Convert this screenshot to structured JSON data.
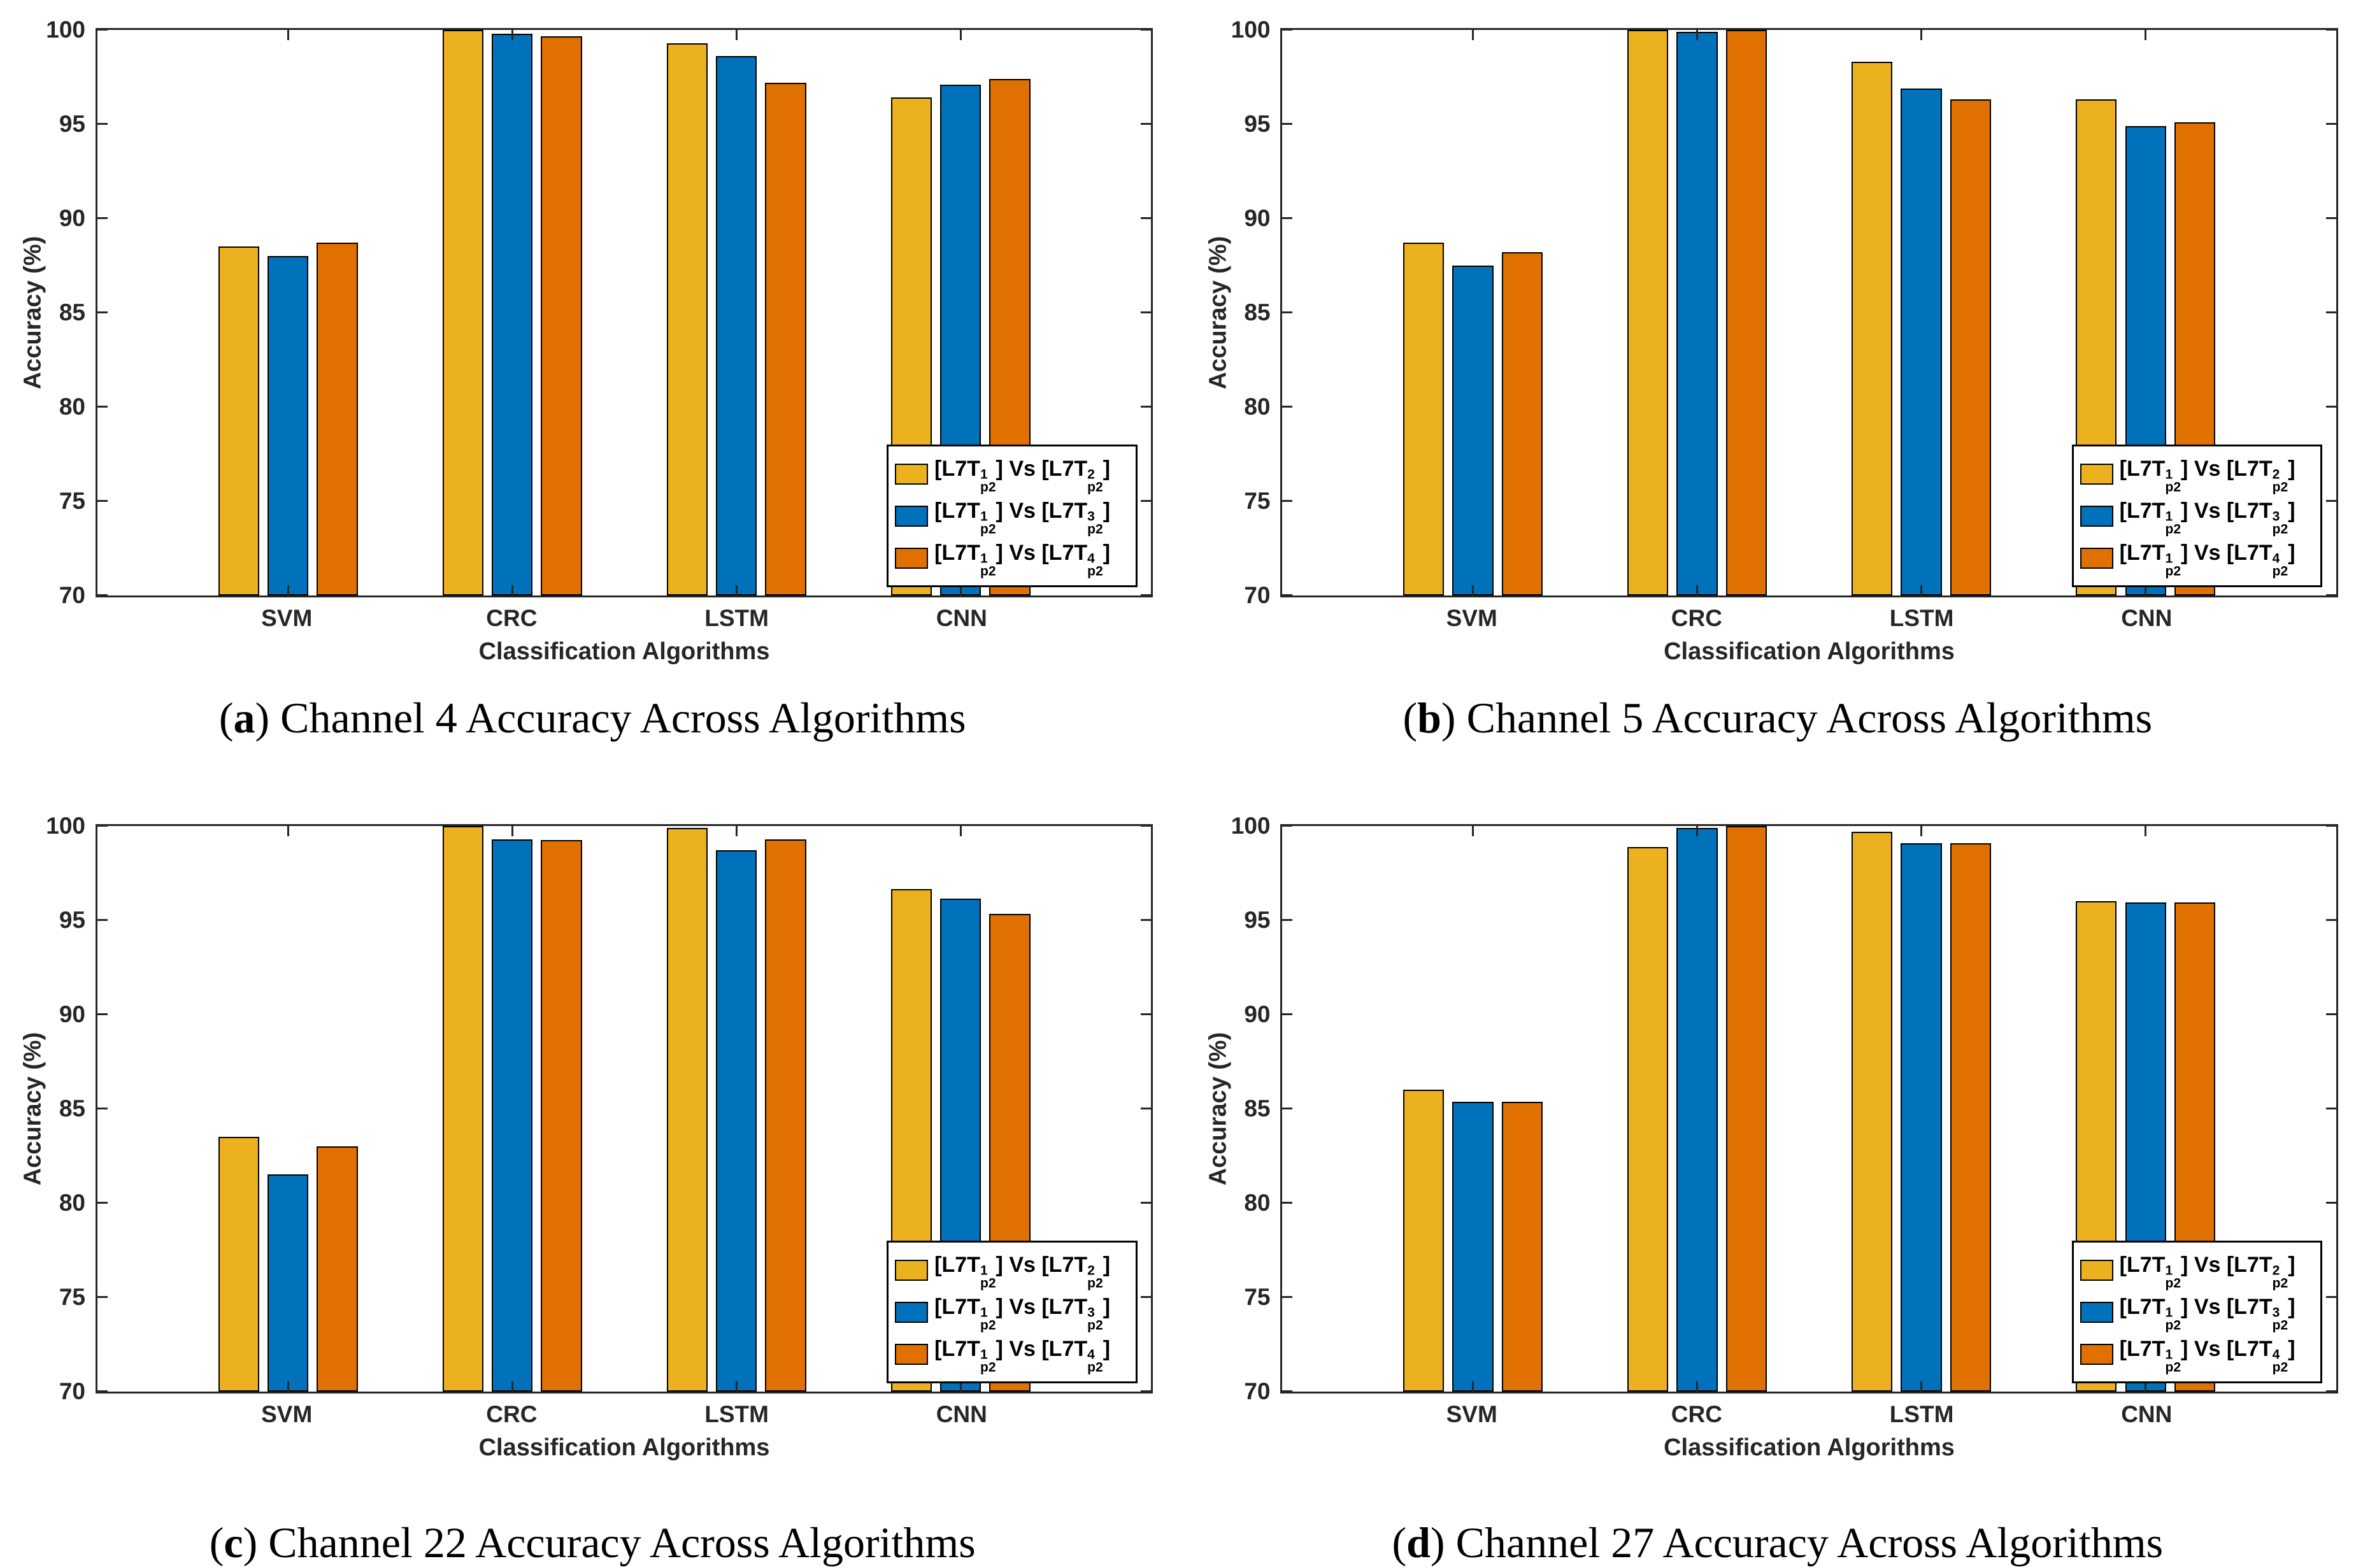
{
  "axes": {
    "ylabel": "Accuracy (%)",
    "xlabel": "Classification Algorithms"
  },
  "series_colors": [
    "#ECB11F",
    "#0072BC",
    "#E07000"
  ],
  "bar_edge_color": "#000000",
  "axis_color": "#262626",
  "legend": {
    "position": "lower-right",
    "items": [
      {
        "pre": "[L7T",
        "sup1": "1",
        "sub1": "p2",
        "mid": "] Vs [L7T",
        "sup2": "2",
        "sub2": "p2",
        "post": "]"
      },
      {
        "pre": "[L7T",
        "sup1": "1",
        "sub1": "p2",
        "mid": "] Vs [L7T",
        "sup2": "3",
        "sub2": "p2",
        "post": "]"
      },
      {
        "pre": "[L7T",
        "sup1": "1",
        "sub1": "p2",
        "mid": "] Vs [L7T",
        "sup2": "4",
        "sub2": "p2",
        "post": "]"
      }
    ]
  },
  "chart_data": [
    {
      "type": "bar",
      "panel": "a",
      "caption": {
        "open": "(",
        "letter": "a",
        "close": ")",
        "text": " Channel 4 Accuracy Across Algorithms"
      },
      "categories": [
        "SVM",
        "CRC",
        "LSTM",
        "CNN"
      ],
      "series": [
        {
          "name": "[L7T^1_p2] Vs [L7T^2_p2]",
          "values": [
            88.5,
            100,
            99.3,
            96.4
          ]
        },
        {
          "name": "[L7T^1_p2] Vs [L7T^3_p2]",
          "values": [
            88.0,
            99.8,
            98.6,
            97.1
          ]
        },
        {
          "name": "[L7T^1_p2] Vs [L7T^4_p2]",
          "values": [
            88.7,
            99.65,
            97.2,
            97.4
          ]
        }
      ],
      "xlabel": "Classification Algorithms",
      "ylabel": "Accuracy (%)",
      "ylim": [
        70,
        100
      ],
      "yticks": [
        70,
        75,
        80,
        85,
        90,
        95,
        100
      ],
      "grid": false,
      "legend_position": "lower right"
    },
    {
      "type": "bar",
      "panel": "b",
      "caption": {
        "open": "(",
        "letter": "b",
        "close": ")",
        "text": " Channel 5 Accuracy Across Algorithms"
      },
      "categories": [
        "SVM",
        "CRC",
        "LSTM",
        "CNN"
      ],
      "series": [
        {
          "name": "[L7T^1_p2] Vs [L7T^2_p2]",
          "values": [
            88.7,
            100,
            98.3,
            96.3
          ]
        },
        {
          "name": "[L7T^1_p2] Vs [L7T^3_p2]",
          "values": [
            87.5,
            99.9,
            96.9,
            94.9
          ]
        },
        {
          "name": "[L7T^1_p2] Vs [L7T^4_p2]",
          "values": [
            88.2,
            100,
            96.3,
            95.1
          ]
        }
      ],
      "xlabel": "Classification Algorithms",
      "ylabel": "Accuracy (%)",
      "ylim": [
        70,
        100
      ],
      "yticks": [
        70,
        75,
        80,
        85,
        90,
        95,
        100
      ],
      "grid": false,
      "legend_position": "lower right"
    },
    {
      "type": "bar",
      "panel": "c",
      "caption": {
        "open": "(",
        "letter": "c",
        "close": ")",
        "text": " Channel 22 Accuracy Across Algorithms"
      },
      "categories": [
        "SVM",
        "CRC",
        "LSTM",
        "CNN"
      ],
      "series": [
        {
          "name": "[L7T^1_p2] Vs [L7T^2_p2]",
          "values": [
            83.5,
            100,
            99.9,
            96.65
          ]
        },
        {
          "name": "[L7T^1_p2] Vs [L7T^3_p2]",
          "values": [
            81.5,
            99.3,
            98.7,
            96.15
          ]
        },
        {
          "name": "[L7T^1_p2] Vs [L7T^4_p2]",
          "values": [
            83.0,
            99.25,
            99.3,
            95.35
          ]
        }
      ],
      "xlabel": "Classification Algorithms",
      "ylabel": "Accuracy (%)",
      "ylim": [
        70,
        100
      ],
      "yticks": [
        70,
        75,
        80,
        85,
        90,
        95,
        100
      ],
      "grid": false,
      "legend_position": "lower right"
    },
    {
      "type": "bar",
      "panel": "d",
      "caption": {
        "open": "(",
        "letter": "d",
        "close": ")",
        "text": " Channel 27 Accuracy Across Algorithms"
      },
      "categories": [
        "SVM",
        "CRC",
        "LSTM",
        "CNN"
      ],
      "series": [
        {
          "name": "[L7T^1_p2] Vs [L7T^2_p2]",
          "values": [
            86.0,
            98.9,
            99.7,
            96.0
          ]
        },
        {
          "name": "[L7T^1_p2] Vs [L7T^3_p2]",
          "values": [
            85.35,
            99.9,
            99.1,
            95.95
          ]
        },
        {
          "name": "[L7T^1_p2] Vs [L7T^4_p2]",
          "values": [
            85.35,
            100,
            99.1,
            95.95
          ]
        }
      ],
      "xlabel": "Classification Algorithms",
      "ylabel": "Accuracy (%)",
      "ylim": [
        70,
        100
      ],
      "yticks": [
        70,
        75,
        80,
        85,
        90,
        95,
        100
      ],
      "grid": false,
      "legend_position": "lower right"
    }
  ]
}
